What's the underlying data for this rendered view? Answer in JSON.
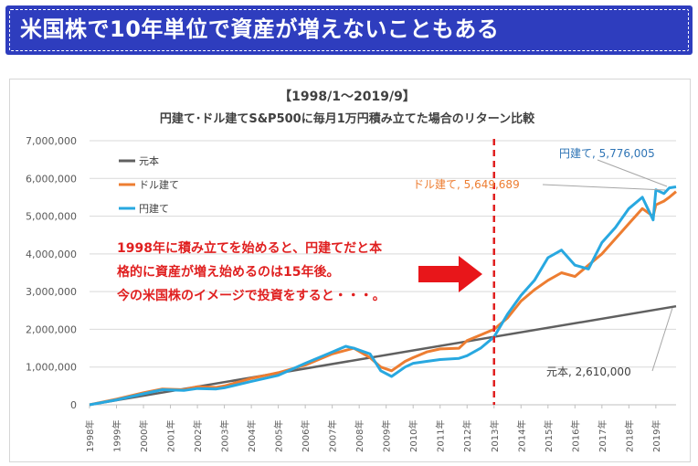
{
  "header": {
    "title": "米国株で10年単位で資産が増えないこともある"
  },
  "chart_data": {
    "type": "line",
    "title": "【1998/1～2019/9】",
    "subtitle": "円建て･ドル建てS&P500に毎月1万円積み立てた場合のリターン比較",
    "ylim": [
      0,
      7000000
    ],
    "yticks": [
      "0",
      "1,000,000",
      "2,000,000",
      "3,000,000",
      "4,000,000",
      "5,000,000",
      "6,000,000",
      "7,000,000"
    ],
    "categories": [
      "1998年",
      "1999年",
      "2000年",
      "2001年",
      "2002年",
      "2003年",
      "2004年",
      "2005年",
      "2006年",
      "2007年",
      "2008年",
      "2009年",
      "2010年",
      "2011年",
      "2012年",
      "2013年",
      "2014年",
      "2015年",
      "2016年",
      "2017年",
      "2018年",
      "2019年"
    ],
    "legend": [
      "元本",
      "ドル建て",
      "円建て"
    ],
    "series": [
      {
        "name": "元本",
        "color": "#606060",
        "x": [
          1998.0,
          2019.75
        ],
        "values": [
          0,
          2610000
        ]
      },
      {
        "name": "ドル建て",
        "color": "#ed7d31",
        "x": [
          1998.0,
          1999.0,
          2000.0,
          2000.7,
          2001.5,
          2002.0,
          2002.7,
          2003.0,
          2004.0,
          2005.0,
          2006.0,
          2007.0,
          2007.8,
          2008.4,
          2008.8,
          2009.2,
          2009.7,
          2010.0,
          2010.5,
          2011.0,
          2011.7,
          2012.0,
          2012.5,
          2013.0,
          2013.5,
          2014.0,
          2014.5,
          2015.0,
          2015.5,
          2016.0,
          2016.5,
          2017.0,
          2017.5,
          2018.0,
          2018.5,
          2018.9,
          2019.0,
          2019.3,
          2019.5,
          2019.75
        ],
        "values": [
          0,
          150000,
          320000,
          420000,
          400000,
          480000,
          460000,
          500000,
          700000,
          850000,
          1050000,
          1350000,
          1500000,
          1250000,
          1000000,
          900000,
          1150000,
          1250000,
          1400000,
          1480000,
          1500000,
          1700000,
          1850000,
          2000000,
          2300000,
          2750000,
          3050000,
          3300000,
          3500000,
          3400000,
          3700000,
          4000000,
          4400000,
          4800000,
          5200000,
          5000000,
          5300000,
          5400000,
          5500000,
          5649689
        ]
      },
      {
        "name": "円建て",
        "color": "#28a8e0",
        "x": [
          1998.0,
          1999.0,
          2000.0,
          2000.7,
          2001.5,
          2002.0,
          2002.7,
          2003.0,
          2004.0,
          2005.0,
          2006.0,
          2007.0,
          2007.5,
          2007.8,
          2008.4,
          2008.8,
          2009.2,
          2009.7,
          2010.0,
          2010.5,
          2011.0,
          2011.7,
          2012.0,
          2012.5,
          2013.0,
          2013.5,
          2014.0,
          2014.5,
          2015.0,
          2015.5,
          2016.0,
          2016.5,
          2017.0,
          2017.5,
          2018.0,
          2018.5,
          2018.9,
          2019.0,
          2019.3,
          2019.5,
          2019.75
        ],
        "values": [
          0,
          130000,
          290000,
          400000,
          380000,
          430000,
          420000,
          450000,
          620000,
          780000,
          1100000,
          1400000,
          1550000,
          1500000,
          1350000,
          900000,
          750000,
          1000000,
          1100000,
          1150000,
          1200000,
          1230000,
          1300000,
          1500000,
          1800000,
          2400000,
          2900000,
          3300000,
          3900000,
          4100000,
          3700000,
          3600000,
          4300000,
          4700000,
          5200000,
          5500000,
          4900000,
          5700000,
          5600000,
          5750000,
          5776005
        ]
      }
    ],
    "annotations": {
      "yen_label": "円建て, 5,776,005",
      "dollar_label": "ドル建て, 5,649,689",
      "principal_label": "元本, 2,610,000",
      "note_lines": [
        "1998年に積み立てを始めると、円建てだと本",
        "格的に資産が増え始めるのは15年後。",
        "今の米国株のイメージで投資をすると・・・。"
      ],
      "vline_x": 2013.0
    }
  }
}
